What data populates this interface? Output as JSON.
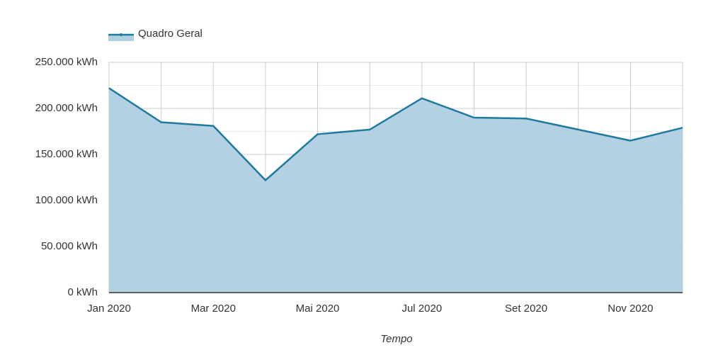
{
  "chart_data": {
    "type": "area",
    "x_label": "Tempo",
    "categories": [
      "Jan 2020",
      null,
      "Mar 2020",
      null,
      "Mai 2020",
      null,
      "Jul 2020",
      null,
      "Set 2020",
      null,
      "Nov 2020",
      null
    ],
    "series": [
      {
        "name": "Quadro Geral",
        "color": "#1f7a9e",
        "fill": "#afcfe0",
        "values": [
          222000,
          185000,
          181000,
          122000,
          172000,
          177000,
          211000,
          190000,
          189000,
          177000,
          165000,
          179000
        ]
      }
    ],
    "ylim": [
      0,
      250000
    ],
    "yticks": [
      {
        "value": 0,
        "label": "0 kWh"
      },
      {
        "value": 50000,
        "label": "50.000 kWh"
      },
      {
        "value": 100000,
        "label": "100.000 kWh"
      },
      {
        "value": 150000,
        "label": "150.000 kWh"
      },
      {
        "value": 200000,
        "label": "200.000 kWh"
      },
      {
        "value": 250000,
        "label": "250.000 kWh"
      }
    ],
    "minor_yticks": [
      25000,
      75000,
      125000,
      175000,
      225000
    ],
    "grid": true,
    "legend": "top-left"
  }
}
